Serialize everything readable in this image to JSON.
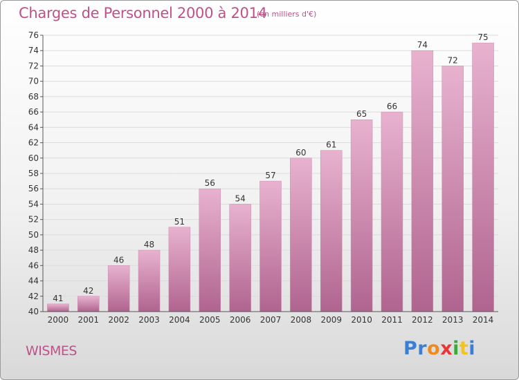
{
  "header": {
    "title": "Charges de Personnel 2000 à 2014",
    "unit": "(en milliers d'€)"
  },
  "footer": {
    "commune": "WISMES",
    "logo": {
      "letters": [
        "P",
        "r",
        "o",
        "x",
        "i",
        "t",
        "i"
      ],
      "colors": [
        "#3a7fd5",
        "#3a7fd5",
        "#f08a1c",
        "#e8353a",
        "#3aa83a",
        "#f0c41c",
        "#3a7fd5"
      ]
    }
  },
  "colors": {
    "bar_top": "#e8b2cf",
    "bar_bottom": "#b0648f",
    "accent": "#c0508a"
  },
  "chart_data": {
    "type": "bar",
    "title": "Charges de Personnel 2000 à 2014",
    "categories": [
      "2000",
      "2001",
      "2002",
      "2003",
      "2004",
      "2005",
      "2006",
      "2007",
      "2008",
      "2009",
      "2010",
      "2011",
      "2012",
      "2013",
      "2014"
    ],
    "values": [
      41,
      42,
      46,
      48,
      51,
      56,
      54,
      57,
      60,
      61,
      65,
      66,
      74,
      72,
      75
    ],
    "ylim": [
      40,
      76
    ],
    "yticks": [
      40,
      42,
      44,
      46,
      48,
      50,
      52,
      54,
      56,
      58,
      60,
      62,
      64,
      66,
      68,
      70,
      72,
      74,
      76
    ],
    "grid": true,
    "xlabel": "",
    "ylabel": ""
  }
}
